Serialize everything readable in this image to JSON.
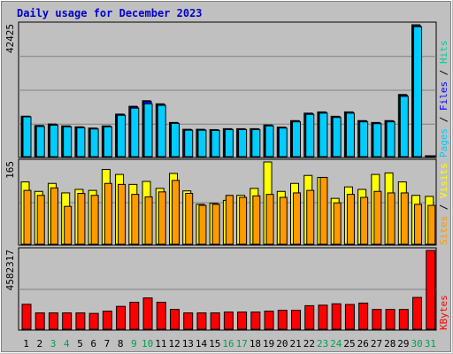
{
  "page": {
    "title": "Daily usage for December 2023"
  },
  "legend": {
    "top": {
      "pages": "Pages",
      "files": "Files",
      "hits": "Hits",
      "separator": " / "
    },
    "middle": {
      "sites": "Sites",
      "visits": "Visits",
      "separator": " / "
    },
    "bottom": {
      "kbytes": "KBytes"
    }
  },
  "colors": {
    "hits": "#00cc99",
    "files": "#0000ff",
    "pages": "#00ccff",
    "visits": "#ffff00",
    "sites": "#ff9900",
    "kbytes": "#ff0000",
    "weekend_label": "#00a050",
    "weekday_label": "#000000",
    "panel_bg": "#c0c0c0",
    "frame_bg": "#c0c0c0"
  },
  "chart_data": [
    {
      "type": "bar",
      "name_label": "Pages / Files / Hits",
      "ymax_label": "42425",
      "ylim": [
        0,
        42425
      ],
      "x": [
        1,
        2,
        3,
        4,
        5,
        6,
        7,
        8,
        9,
        10,
        11,
        12,
        13,
        14,
        15,
        16,
        17,
        18,
        19,
        20,
        21,
        22,
        23,
        24,
        25,
        26,
        27,
        28,
        29,
        30,
        31
      ],
      "series": [
        {
          "name": "Hits",
          "values": [
            13000,
            10000,
            10500,
            9900,
            9600,
            9200,
            9900,
            13700,
            16200,
            18000,
            17000,
            11000,
            8800,
            8800,
            8700,
            9000,
            9000,
            9000,
            10200,
            9500,
            11600,
            14000,
            14400,
            13000,
            14400,
            11600,
            11000,
            11600,
            20000,
            42425,
            0
          ]
        },
        {
          "name": "Files",
          "values": [
            13000,
            10000,
            10400,
            9800,
            9500,
            9100,
            9800,
            13600,
            16000,
            17800,
            16800,
            10900,
            8700,
            8700,
            8600,
            8900,
            8900,
            8900,
            10100,
            9400,
            11500,
            13900,
            14300,
            12900,
            14300,
            11500,
            10900,
            11500,
            19800,
            42100,
            0
          ]
        },
        {
          "name": "Pages",
          "values": [
            12800,
            9700,
            10100,
            9600,
            9300,
            8900,
            9600,
            13300,
            15600,
            17000,
            16500,
            10700,
            8500,
            8500,
            8400,
            8700,
            8700,
            8700,
            9900,
            9200,
            11200,
            13600,
            14000,
            12600,
            14000,
            11200,
            10600,
            11200,
            19400,
            41800,
            0
          ]
        }
      ]
    },
    {
      "type": "bar",
      "name_label": "Sites / Visits",
      "ymax_label": "165",
      "ylim": [
        0,
        165
      ],
      "x": [
        1,
        2,
        3,
        4,
        5,
        6,
        7,
        8,
        9,
        10,
        11,
        12,
        13,
        14,
        15,
        16,
        17,
        18,
        19,
        20,
        21,
        22,
        23,
        24,
        25,
        26,
        27,
        28,
        29,
        30,
        31
      ],
      "series": [
        {
          "name": "Visits",
          "values": [
            125,
            106,
            122,
            103,
            110,
            108,
            150,
            140,
            120,
            126,
            112,
            142,
            107,
            80,
            82,
            88,
            98,
            112,
            165,
            106,
            122,
            138,
            134,
            92,
            115,
            110,
            140,
            143,
            125,
            98,
            96
          ]
        },
        {
          "name": "Sites",
          "values": [
            108,
            98,
            113,
            76,
            102,
            98,
            122,
            120,
            100,
            95,
            105,
            128,
            102,
            78,
            80,
            98,
            94,
            97,
            100,
            94,
            103,
            108,
            134,
            83,
            100,
            94,
            106,
            103,
            103,
            80,
            78
          ]
        }
      ]
    },
    {
      "type": "bar",
      "name_label": "KBytes",
      "ymax_label": "4582317",
      "ylim": [
        0,
        4582317
      ],
      "x": [
        1,
        2,
        3,
        4,
        5,
        6,
        7,
        8,
        9,
        10,
        11,
        12,
        13,
        14,
        15,
        16,
        17,
        18,
        19,
        20,
        21,
        22,
        23,
        24,
        25,
        26,
        27,
        28,
        29,
        30,
        31
      ],
      "series": [
        {
          "name": "KBytes",
          "values": [
            1450000,
            950000,
            950000,
            950000,
            950000,
            920000,
            1050000,
            1330000,
            1570000,
            1820000,
            1570000,
            1150000,
            950000,
            950000,
            950000,
            1000000,
            1000000,
            1000000,
            1050000,
            1100000,
            1100000,
            1370000,
            1400000,
            1480000,
            1440000,
            1520000,
            1150000,
            1150000,
            1150000,
            1850000,
            4582317
          ]
        }
      ]
    }
  ],
  "days": {
    "labels": [
      "1",
      "2",
      "3",
      "4",
      "5",
      "6",
      "7",
      "8",
      "9",
      "10",
      "11",
      "12",
      "13",
      "14",
      "15",
      "16",
      "17",
      "18",
      "19",
      "20",
      "21",
      "22",
      "23",
      "24",
      "25",
      "26",
      "27",
      "28",
      "29",
      "30",
      "31"
    ],
    "weekend": [
      false,
      false,
      true,
      true,
      false,
      false,
      false,
      false,
      true,
      true,
      false,
      false,
      false,
      false,
      false,
      true,
      true,
      false,
      false,
      false,
      false,
      false,
      true,
      true,
      false,
      false,
      false,
      false,
      false,
      true,
      true
    ]
  }
}
